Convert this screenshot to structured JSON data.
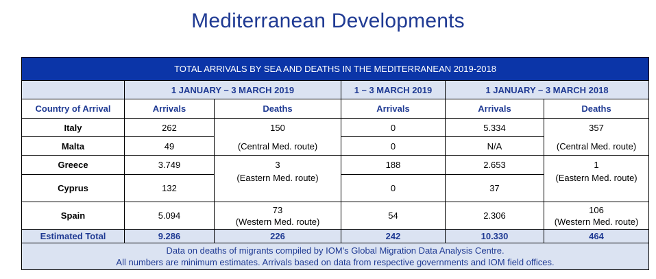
{
  "title": "Mediterranean Developments",
  "table": {
    "banner": "TOTAL ARRIVALS BY SEA AND DEATHS IN THE MEDITERRANEAN 2019-2018",
    "periods": [
      "1 JANUARY – 3 MARCH 2019",
      "1 – 3 MARCH 2019",
      "1 JANUARY – 3 MARCH 2018"
    ],
    "headers": [
      "Country of Arrival",
      "Arrivals",
      "Deaths",
      "Arrivals",
      "Arrivals",
      "Deaths"
    ],
    "rows": [
      {
        "country": "Italy",
        "arr2019": "262",
        "arrMar2019": "0",
        "arr2018": "5.334"
      },
      {
        "country": "Malta",
        "arr2019": "49",
        "arrMar2019": "0",
        "arr2018": "N/A"
      },
      {
        "country": "Greece",
        "arr2019": "3.749",
        "arrMar2019": "188",
        "arr2018": "2.653"
      },
      {
        "country": "Cyprus",
        "arr2019": "132",
        "arrMar2019": "0",
        "arr2018": "37"
      },
      {
        "country": "Spain",
        "arr2019": "5.094",
        "arrMar2019": "54",
        "arr2018": "2.306"
      }
    ],
    "deaths2019": [
      {
        "value": "150",
        "route": "(Central Med. route)"
      },
      {
        "value": "3",
        "route": "(Eastern Med. route)"
      },
      {
        "value": "73",
        "route": "(Western Med. route)"
      }
    ],
    "deaths2018": [
      {
        "value": "357",
        "route": "(Central Med. route)"
      },
      {
        "value": "1",
        "route": "(Eastern Med. route)"
      },
      {
        "value": "106",
        "route": "(Western Med. route)"
      }
    ],
    "total": {
      "label": "Estimated Total",
      "arr2019": "9.286",
      "deaths2019": "226",
      "arrMar2019": "242",
      "arr2018": "10.330",
      "deaths2018": "464"
    },
    "footer": [
      "Data on deaths of migrants compiled by IOM's Global Migration Data Analysis Centre.",
      "All numbers are minimum estimates. Arrivals based on data from respective governments and IOM field offices."
    ]
  }
}
